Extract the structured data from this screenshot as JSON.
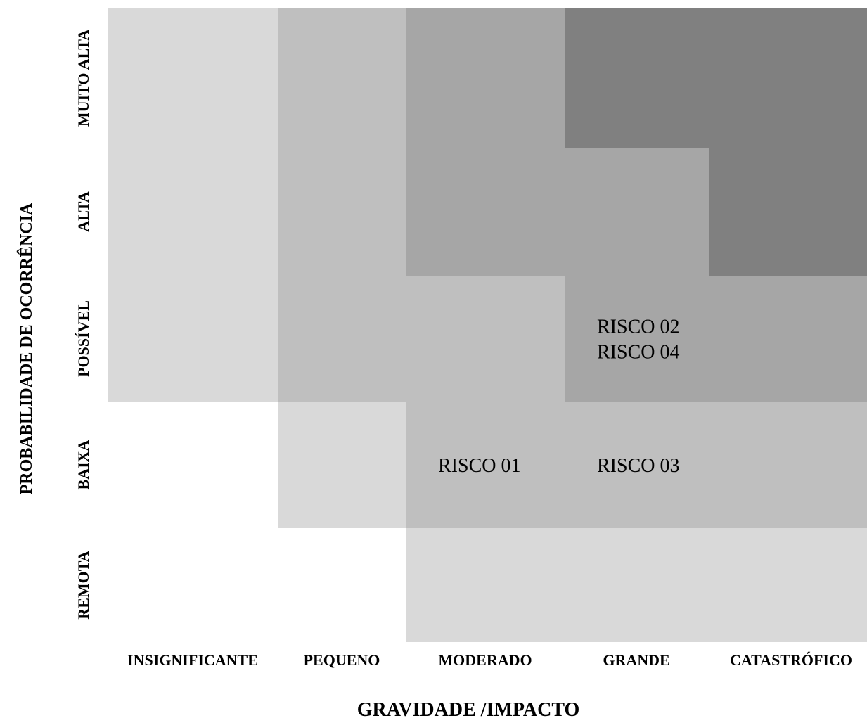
{
  "chart_data": {
    "type": "heatmap",
    "title": "",
    "xlabel": "GRAVIDADE /IMPACTO",
    "ylabel": "PROBABILIDADE DE OCORRÊNCIA",
    "x_categories": [
      "INSIGNIFICANTE",
      "PEQUENO",
      "MODERADO",
      "GRANDE",
      "CATASTRÓFICO"
    ],
    "y_categories": [
      "MUITO ALTA",
      "ALTA",
      "POSSÍVEL",
      "BAIXA",
      "REMOTA"
    ],
    "levels": {
      "0": "#ffffff",
      "1": "#d9d9d9",
      "2": "#bfbfbf",
      "3": "#a6a6a6",
      "4": "#808080"
    },
    "matrix": [
      [
        1,
        2,
        3,
        4,
        4
      ],
      [
        1,
        2,
        3,
        3,
        4
      ],
      [
        1,
        2,
        2,
        3,
        3
      ],
      [
        0,
        1,
        2,
        2,
        2
      ],
      [
        0,
        0,
        1,
        1,
        1
      ]
    ],
    "risks": [
      {
        "label": "RISCO 01",
        "x": "MODERADO",
        "y": "BAIXA"
      },
      {
        "label": "RISCO 02",
        "x": "GRANDE",
        "y": "POSSÍVEL"
      },
      {
        "label": "RISCO 04",
        "x": "GRANDE",
        "y": "POSSÍVEL"
      },
      {
        "label": "RISCO 03",
        "x": "GRANDE",
        "y": "BAIXA"
      }
    ],
    "grid": false,
    "legend": "none"
  }
}
